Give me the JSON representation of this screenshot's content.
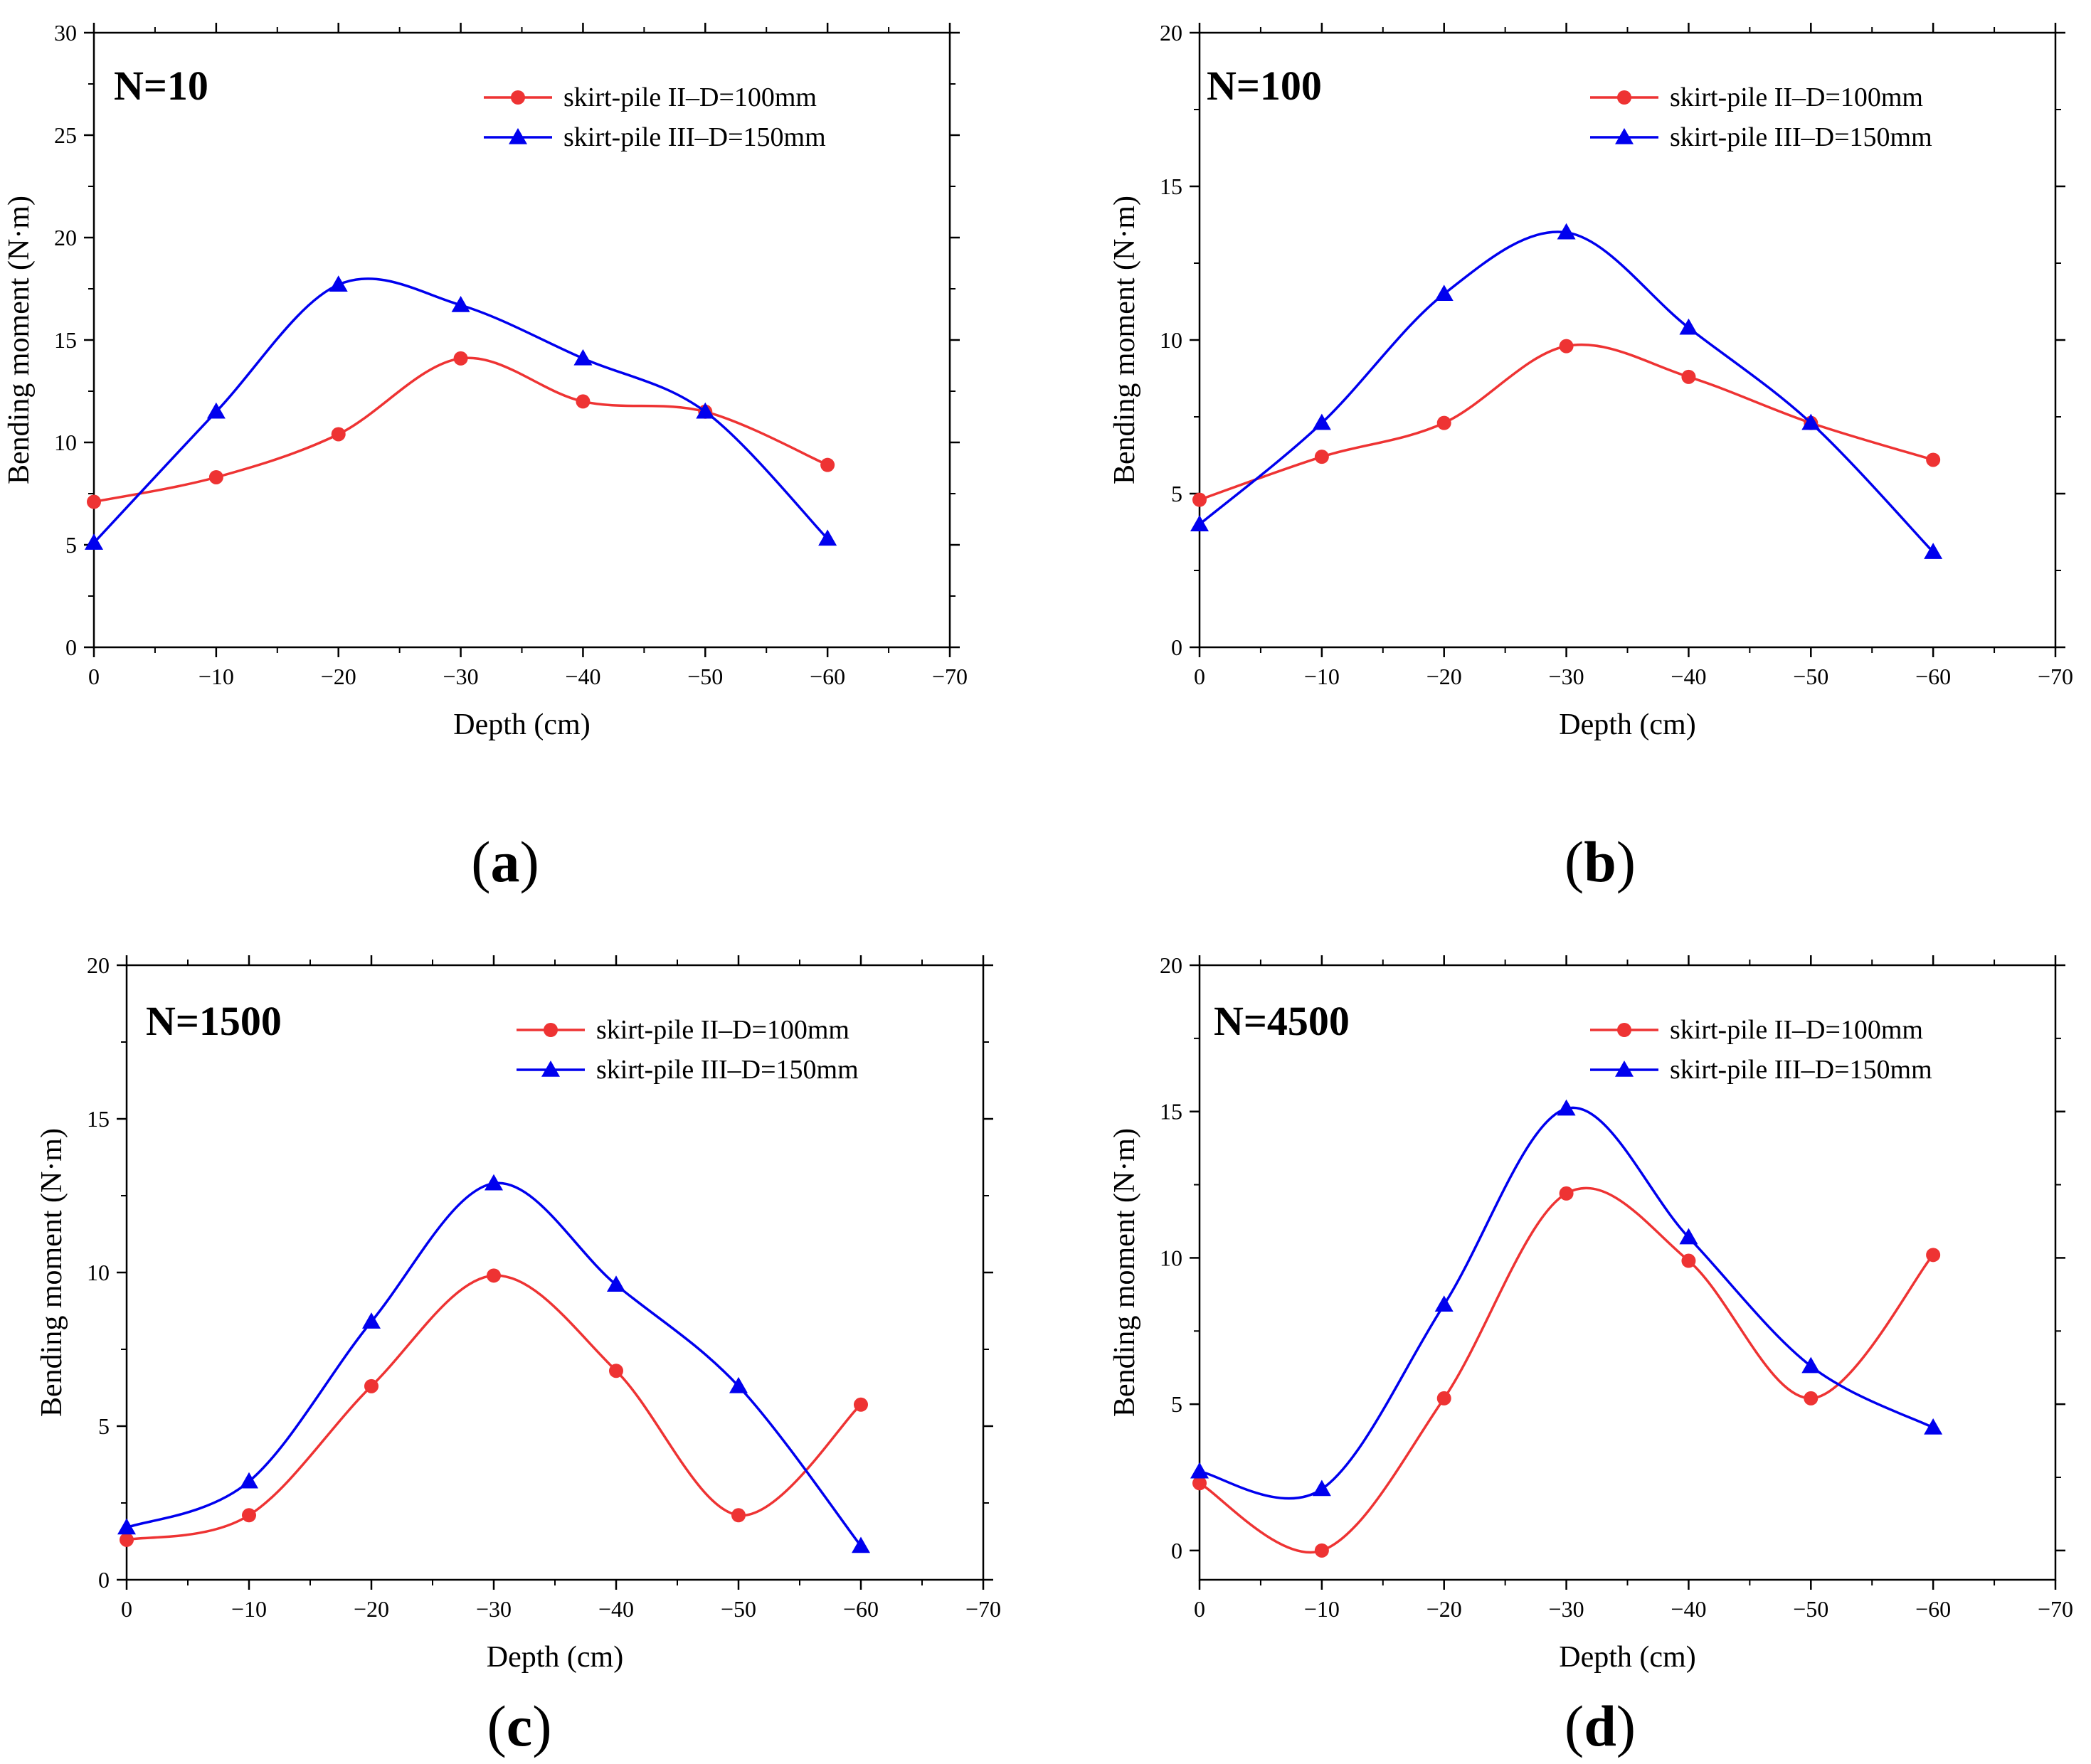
{
  "chart_data": [
    {
      "type": "line",
      "panel": "(a)",
      "panel_letter": "a",
      "annotation": "N=10",
      "xlabel": "Depth (cm)",
      "ylabel": "Bending moment (N·m)",
      "xlim": [
        0,
        -70
      ],
      "ylim": [
        0,
        30
      ],
      "xticks": [
        "0",
        "−10",
        "−20",
        "−30",
        "−40",
        "−50",
        "−60",
        "−70"
      ],
      "yticks": [
        "0",
        "5",
        "10",
        "15",
        "20",
        "25",
        "30"
      ],
      "legend_position": "top-right",
      "grid": false,
      "x": [
        0,
        -10,
        -20,
        -30,
        -40,
        -50,
        -60
      ],
      "series": [
        {
          "name": "skirt-pile II–D=100mm",
          "color": "#ee3333",
          "marker": "circle",
          "values": [
            7.1,
            8.3,
            10.4,
            14.1,
            12.0,
            11.5,
            8.9
          ]
        },
        {
          "name": "skirt-pile III–D=150mm",
          "color": "#0000ee",
          "marker": "triangle",
          "values": [
            5.1,
            11.5,
            17.7,
            16.7,
            14.1,
            11.5,
            5.3
          ]
        }
      ]
    },
    {
      "type": "line",
      "panel": "(b)",
      "panel_letter": "b",
      "annotation": "N=100",
      "xlabel": "Depth (cm)",
      "ylabel": "Bending moment (N·m)",
      "xlim": [
        0,
        -70
      ],
      "ylim": [
        0,
        20
      ],
      "xticks": [
        "0",
        "−10",
        "−20",
        "−30",
        "−40",
        "−50",
        "−60",
        "−70"
      ],
      "yticks": [
        "0",
        "5",
        "10",
        "15",
        "20"
      ],
      "legend_position": "top-right",
      "grid": false,
      "x": [
        0,
        -10,
        -20,
        -30,
        -40,
        -50,
        -60
      ],
      "series": [
        {
          "name": "skirt-pile II–D=100mm",
          "color": "#ee3333",
          "marker": "circle",
          "values": [
            4.8,
            6.2,
            7.3,
            9.8,
            8.8,
            7.3,
            6.1
          ]
        },
        {
          "name": "skirt-pile III–D=150mm",
          "color": "#0000ee",
          "marker": "triangle",
          "values": [
            4.0,
            7.3,
            11.5,
            13.5,
            10.4,
            7.3,
            3.1
          ]
        }
      ]
    },
    {
      "type": "line",
      "panel": "(c)",
      "panel_letter": "c",
      "annotation": "N=1500",
      "xlabel": "Depth (cm)",
      "ylabel": "Bending moment (N·m)",
      "xlim": [
        0,
        -70
      ],
      "ylim": [
        0,
        20
      ],
      "xticks": [
        "0",
        "−10",
        "−20",
        "−30",
        "−40",
        "−50",
        "−60",
        "−70"
      ],
      "yticks": [
        "0",
        "5",
        "10",
        "15",
        "20"
      ],
      "legend_position": "top-right",
      "grid": false,
      "x": [
        0,
        -10,
        -20,
        -30,
        -40,
        -50,
        -60
      ],
      "series": [
        {
          "name": "skirt-pile II–D=100mm",
          "color": "#ee3333",
          "marker": "circle",
          "values": [
            1.3,
            2.1,
            6.3,
            9.9,
            6.8,
            2.1,
            5.7
          ]
        },
        {
          "name": "skirt-pile III–D=150mm",
          "color": "#0000ee",
          "marker": "triangle",
          "values": [
            1.7,
            3.2,
            8.4,
            12.9,
            9.6,
            6.3,
            1.1
          ]
        }
      ]
    },
    {
      "type": "line",
      "panel": "(d)",
      "panel_letter": "d",
      "annotation": "N=4500",
      "xlabel": "Depth (cm)",
      "ylabel": "Bending moment (N·m)",
      "xlim": [
        0,
        -70
      ],
      "ylim": [
        -1,
        20
      ],
      "xticks": [
        "0",
        "−10",
        "−20",
        "−30",
        "−40",
        "−50",
        "−60",
        "−70"
      ],
      "yticks": [
        "0",
        "5",
        "10",
        "15",
        "20"
      ],
      "legend_position": "top-right",
      "grid": false,
      "x": [
        0,
        -10,
        -20,
        -30,
        -40,
        -50,
        -60
      ],
      "series": [
        {
          "name": "skirt-pile II–D=100mm",
          "color": "#ee3333",
          "marker": "circle",
          "values": [
            2.3,
            0.0,
            5.2,
            12.2,
            9.9,
            5.2,
            10.1
          ]
        },
        {
          "name": "skirt-pile III–D=150mm",
          "color": "#0000ee",
          "marker": "triangle",
          "values": [
            2.7,
            2.1,
            8.4,
            15.1,
            10.7,
            6.3,
            4.2
          ]
        }
      ]
    }
  ]
}
